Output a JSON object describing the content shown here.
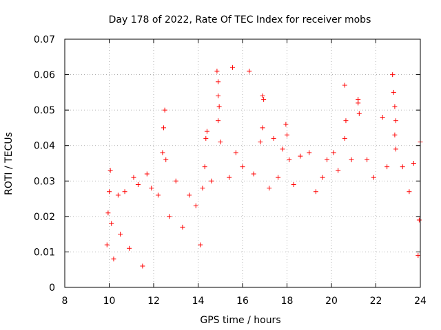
{
  "chart_data": {
    "type": "scatter",
    "title": "Day 178 of 2022, Rate Of TEC Index for receiver mobs",
    "xlabel": "GPS time / hours",
    "ylabel": "ROTI / TECUs",
    "xlim": [
      8,
      24
    ],
    "ylim": [
      0,
      0.07
    ],
    "x_ticks": [
      "8",
      "10",
      "12",
      "14",
      "16",
      "18",
      "20",
      "22",
      "24"
    ],
    "y_ticks": [
      "0",
      "0.01",
      "0.02",
      "0.03",
      "0.04",
      "0.05",
      "0.06",
      "0.07"
    ],
    "grid": true,
    "marker": "+",
    "color": "#ff0000",
    "series": [
      {
        "points": [
          [
            9.9,
            0.012
          ],
          [
            9.95,
            0.021
          ],
          [
            10.0,
            0.027
          ],
          [
            10.05,
            0.033
          ],
          [
            10.1,
            0.018
          ],
          [
            10.2,
            0.008
          ],
          [
            10.4,
            0.026
          ],
          [
            10.5,
            0.015
          ],
          [
            10.7,
            0.027
          ],
          [
            10.9,
            0.011
          ],
          [
            11.1,
            0.031
          ],
          [
            11.3,
            0.029
          ],
          [
            11.5,
            0.006
          ],
          [
            11.7,
            0.032
          ],
          [
            11.9,
            0.028
          ],
          [
            12.2,
            0.026
          ],
          [
            12.4,
            0.038
          ],
          [
            12.45,
            0.045
          ],
          [
            12.5,
            0.05
          ],
          [
            12.55,
            0.036
          ],
          [
            12.7,
            0.02
          ],
          [
            13.0,
            0.03
          ],
          [
            13.3,
            0.017
          ],
          [
            13.6,
            0.026
          ],
          [
            13.9,
            0.023
          ],
          [
            14.1,
            0.012
          ],
          [
            14.2,
            0.028
          ],
          [
            14.3,
            0.034
          ],
          [
            14.35,
            0.042
          ],
          [
            14.4,
            0.044
          ],
          [
            14.6,
            0.03
          ],
          [
            14.85,
            0.061
          ],
          [
            14.9,
            0.058
          ],
          [
            14.9,
            0.054
          ],
          [
            14.95,
            0.051
          ],
          [
            14.9,
            0.047
          ],
          [
            15.0,
            0.041
          ],
          [
            15.4,
            0.031
          ],
          [
            15.55,
            0.062
          ],
          [
            15.7,
            0.038
          ],
          [
            16.0,
            0.034
          ],
          [
            16.3,
            0.061
          ],
          [
            16.5,
            0.032
          ],
          [
            16.9,
            0.054
          ],
          [
            16.95,
            0.053
          ],
          [
            16.9,
            0.045
          ],
          [
            16.8,
            0.041
          ],
          [
            17.2,
            0.028
          ],
          [
            17.4,
            0.042
          ],
          [
            17.6,
            0.031
          ],
          [
            17.8,
            0.039
          ],
          [
            17.95,
            0.046
          ],
          [
            18.0,
            0.043
          ],
          [
            18.1,
            0.036
          ],
          [
            18.3,
            0.029
          ],
          [
            18.6,
            0.037
          ],
          [
            19.0,
            0.038
          ],
          [
            19.3,
            0.027
          ],
          [
            19.6,
            0.031
          ],
          [
            19.8,
            0.036
          ],
          [
            20.1,
            0.038
          ],
          [
            20.3,
            0.033
          ],
          [
            20.6,
            0.042
          ],
          [
            20.6,
            0.057
          ],
          [
            20.65,
            0.047
          ],
          [
            20.9,
            0.036
          ],
          [
            21.2,
            0.053
          ],
          [
            21.2,
            0.052
          ],
          [
            21.25,
            0.049
          ],
          [
            21.6,
            0.036
          ],
          [
            21.9,
            0.031
          ],
          [
            22.3,
            0.048
          ],
          [
            22.5,
            0.034
          ],
          [
            22.75,
            0.06
          ],
          [
            22.8,
            0.055
          ],
          [
            22.85,
            0.051
          ],
          [
            22.9,
            0.047
          ],
          [
            22.85,
            0.043
          ],
          [
            22.9,
            0.039
          ],
          [
            23.2,
            0.034
          ],
          [
            23.5,
            0.027
          ],
          [
            23.7,
            0.035
          ],
          [
            24.0,
            0.041
          ],
          [
            23.95,
            0.019
          ],
          [
            23.9,
            0.009
          ]
        ]
      }
    ]
  }
}
